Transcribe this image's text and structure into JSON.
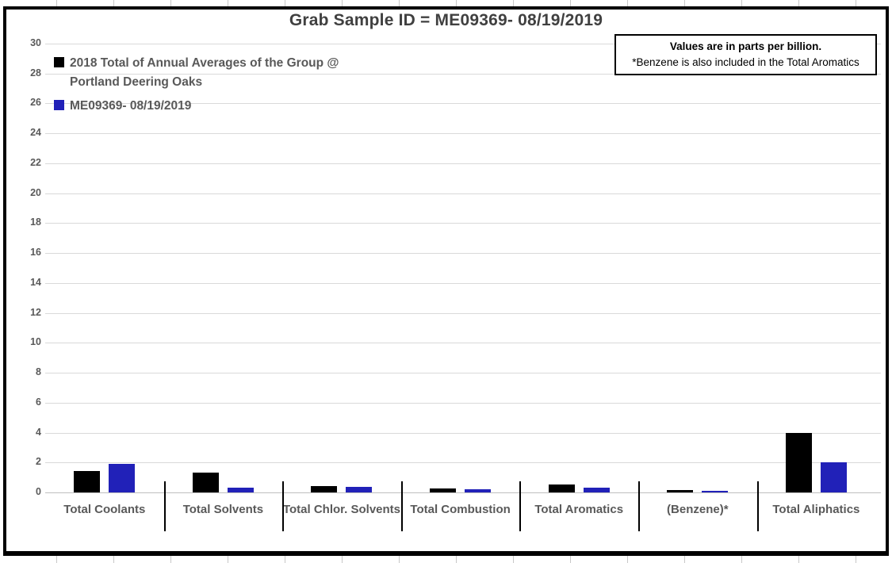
{
  "chart": {
    "title": "Grab Sample ID = ME09369- 08/19/2019",
    "note": {
      "line1": "Values are in parts per billion.",
      "line2": "*Benzene is also included in the Total Aromatics"
    }
  },
  "chart_data": {
    "type": "bar",
    "title": "Grab Sample ID = ME09369- 08/19/2019",
    "units": "parts per billion",
    "categories": [
      "Total Coolants",
      "Total Solvents",
      "Total Chlor. Solvents",
      "Total Combustion",
      "Total Aromatics",
      "(Benzene)*",
      "Total Aliphatics"
    ],
    "series": [
      {
        "name": "2018 Total of Annual Averages of the Group @ Portland Deering Oaks",
        "color": "#000000",
        "values": [
          1.45,
          1.35,
          0.45,
          0.25,
          0.55,
          0.15,
          4.0
        ]
      },
      {
        "name": "ME09369- 08/19/2019",
        "color": "#2121B8",
        "values": [
          1.9,
          0.3,
          0.35,
          0.2,
          0.3,
          0.1,
          2.0
        ]
      }
    ],
    "ylim": [
      0,
      30
    ],
    "ytick_step": 2,
    "yticks": [
      0,
      2,
      4,
      6,
      8,
      10,
      12,
      14,
      16,
      18,
      20,
      22,
      24,
      26,
      28,
      30
    ],
    "grid": true,
    "legend_position": "top-left",
    "annotation": "Values are in parts per billion. *Benzene is also included in the Total Aromatics"
  }
}
